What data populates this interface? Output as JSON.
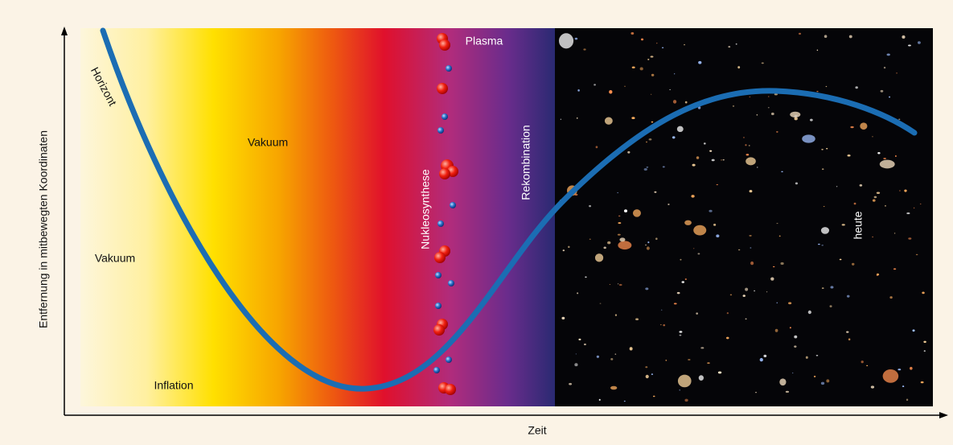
{
  "diagram": {
    "y_axis_label": "Entfernung in mitbewegten Koordinaten",
    "x_axis_label": "Zeit",
    "curve_label": "Horizont",
    "regions": {
      "vacuum_upper": "Vakuum",
      "vacuum_lower": "Vakuum",
      "inflation": "Inflation",
      "plasma": "Plasma",
      "nucleosynthesis": "Nukleosynthese",
      "recombination": "Rekombination",
      "today": "heute"
    }
  }
}
